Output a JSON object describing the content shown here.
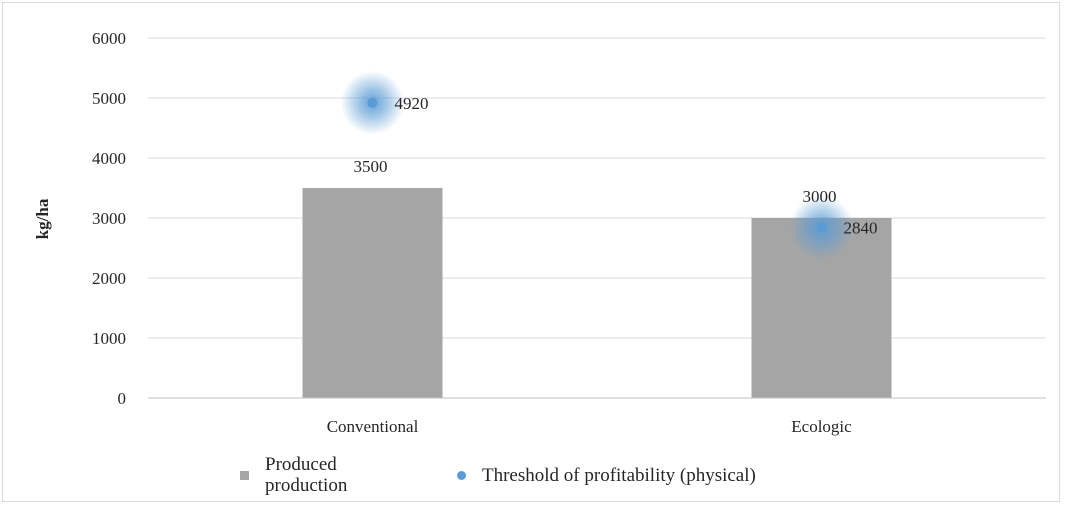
{
  "chart_data": {
    "type": "bar",
    "categories": [
      "Conventional",
      "Ecologic"
    ],
    "series": [
      {
        "name": "Produced production",
        "kind": "bar",
        "color": "#a5a5a5",
        "values": [
          3500,
          3000
        ],
        "labels": [
          "3500",
          "3000"
        ]
      },
      {
        "name": "Threshold of profitability (physical)",
        "kind": "marker",
        "color": "#5b9bd5",
        "values": [
          4920,
          2840
        ],
        "labels": [
          "4920",
          "2840"
        ]
      }
    ],
    "title": "",
    "xlabel": "",
    "ylabel": "kg/ha",
    "ylim": [
      0,
      6000
    ],
    "yticks": [
      "0",
      "1000",
      "2000",
      "3000",
      "4000",
      "5000",
      "6000"
    ],
    "grid": true,
    "legend_position": "bottom"
  }
}
